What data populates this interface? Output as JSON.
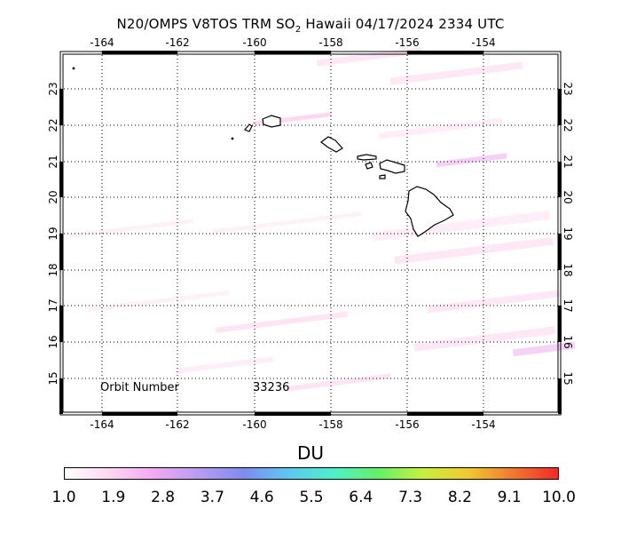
{
  "title": {
    "main": "N20/OMPS V8TOS TRM SO",
    "sub": "2",
    "rest": " Hawaii 04/17/2024 2334 UTC"
  },
  "lon_labels": [
    "-164",
    "-162",
    "-160",
    "-158",
    "-156",
    "-154"
  ],
  "lat_labels": [
    "15",
    "16",
    "17",
    "18",
    "19",
    "20",
    "21",
    "22",
    "23"
  ],
  "orbit": {
    "label": "Orbit Number",
    "value": "33236"
  },
  "colorbar": {
    "unit": "DU",
    "ticks": [
      "1.0",
      "1.9",
      "2.8",
      "3.7",
      "4.6",
      "5.5",
      "6.4",
      "7.3",
      "8.2",
      "9.1",
      "10.0"
    ],
    "colors": [
      "#ffffff",
      "#ffd6f2",
      "#f2a8f2",
      "#b89cf2",
      "#7d8cf0",
      "#5ec8f0",
      "#4ef0c8",
      "#66f066",
      "#c8f040",
      "#f0c830",
      "#f07830",
      "#f02a2a"
    ]
  },
  "map_extent": {
    "lon": [
      -165,
      -152
    ],
    "lat": [
      14,
      24
    ]
  },
  "swath_color": "#ffc8e8"
}
